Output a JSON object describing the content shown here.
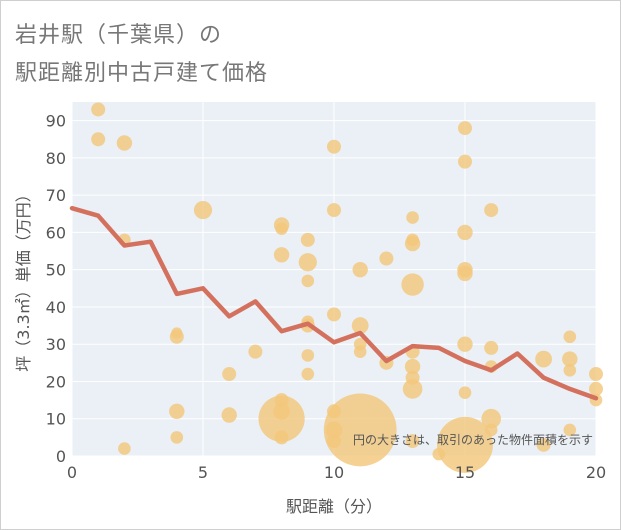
{
  "header": {
    "title_line1": "岩井駅（千葉県）の",
    "title_line2": "駅距離別中古戸建て価格"
  },
  "chart_data": {
    "type": "scatter",
    "title": "岩井駅（千葉県）の駅距離別中古戸建て価格",
    "xlabel": "駅距離（分）",
    "ylabel": "坪（3.3㎡）単価（万円）",
    "xlim": [
      0,
      20
    ],
    "ylim": [
      0,
      95
    ],
    "xticks": [
      0,
      5,
      10,
      15,
      20
    ],
    "yticks": [
      0,
      10,
      20,
      30,
      40,
      50,
      60,
      70,
      80,
      90
    ],
    "grid": true,
    "note": "円の大きさは、取引のあった物件面積を示す",
    "colors": {
      "bubble": "#f3c77d",
      "line": "#d4715e",
      "plot_bg": "#eaf0f5",
      "grid": "#ffffff",
      "axis_text": "#555555"
    },
    "series": [
      {
        "type": "scatter",
        "points": [
          {
            "x": 1,
            "y": 93,
            "s": 1.0
          },
          {
            "x": 1,
            "y": 85,
            "s": 1.0
          },
          {
            "x": 2,
            "y": 84,
            "s": 1.1
          },
          {
            "x": 2,
            "y": 58,
            "s": 0.9
          },
          {
            "x": 2,
            "y": 2,
            "s": 0.9
          },
          {
            "x": 4,
            "y": 33,
            "s": 0.8
          },
          {
            "x": 4,
            "y": 32,
            "s": 1.0
          },
          {
            "x": 4,
            "y": 12,
            "s": 1.1
          },
          {
            "x": 4,
            "y": 5,
            "s": 0.9
          },
          {
            "x": 5,
            "y": 66,
            "s": 1.3
          },
          {
            "x": 6,
            "y": 22,
            "s": 1.0
          },
          {
            "x": 6,
            "y": 11,
            "s": 1.1
          },
          {
            "x": 7,
            "y": 28,
            "s": 1.0
          },
          {
            "x": 8,
            "y": 62,
            "s": 1.1
          },
          {
            "x": 8,
            "y": 61,
            "s": 0.9
          },
          {
            "x": 8,
            "y": 54,
            "s": 1.1
          },
          {
            "x": 8,
            "y": 15,
            "s": 1.0
          },
          {
            "x": 8,
            "y": 12,
            "s": 1.2
          },
          {
            "x": 8,
            "y": 10,
            "s": 3.3
          },
          {
            "x": 8,
            "y": 5,
            "s": 1.0
          },
          {
            "x": 9,
            "y": 58,
            "s": 1.0
          },
          {
            "x": 9,
            "y": 52,
            "s": 1.3
          },
          {
            "x": 9,
            "y": 47,
            "s": 0.9
          },
          {
            "x": 9,
            "y": 36,
            "s": 0.9
          },
          {
            "x": 9,
            "y": 35,
            "s": 1.0
          },
          {
            "x": 9,
            "y": 27,
            "s": 0.9
          },
          {
            "x": 9,
            "y": 22,
            "s": 0.9
          },
          {
            "x": 10,
            "y": 83,
            "s": 1.0
          },
          {
            "x": 10,
            "y": 66,
            "s": 1.0
          },
          {
            "x": 10,
            "y": 38,
            "s": 1.0
          },
          {
            "x": 10,
            "y": 12,
            "s": 1.0
          },
          {
            "x": 10,
            "y": 7,
            "s": 1.2
          },
          {
            "x": 10,
            "y": 4,
            "s": 1.0
          },
          {
            "x": 11,
            "y": 50,
            "s": 1.1
          },
          {
            "x": 11,
            "y": 35,
            "s": 1.2
          },
          {
            "x": 11,
            "y": 30,
            "s": 0.9
          },
          {
            "x": 11,
            "y": 28,
            "s": 0.9
          },
          {
            "x": 11,
            "y": 7,
            "s": 5.2
          },
          {
            "x": 12,
            "y": 53,
            "s": 1.0
          },
          {
            "x": 12,
            "y": 25,
            "s": 1.0
          },
          {
            "x": 13,
            "y": 64,
            "s": 0.9
          },
          {
            "x": 13,
            "y": 58,
            "s": 0.9
          },
          {
            "x": 13,
            "y": 57,
            "s": 1.1
          },
          {
            "x": 13,
            "y": 46,
            "s": 1.6
          },
          {
            "x": 13,
            "y": 28,
            "s": 1.0
          },
          {
            "x": 13,
            "y": 24,
            "s": 1.1
          },
          {
            "x": 13,
            "y": 21,
            "s": 1.0
          },
          {
            "x": 13,
            "y": 18,
            "s": 1.4
          },
          {
            "x": 13,
            "y": 4,
            "s": 1.0
          },
          {
            "x": 14,
            "y": 0.5,
            "s": 0.9
          },
          {
            "x": 15,
            "y": 88,
            "s": 1.0
          },
          {
            "x": 15,
            "y": 79,
            "s": 1.0
          },
          {
            "x": 15,
            "y": 60,
            "s": 1.1
          },
          {
            "x": 15,
            "y": 50,
            "s": 1.1
          },
          {
            "x": 15,
            "y": 49,
            "s": 1.1
          },
          {
            "x": 15,
            "y": 30,
            "s": 1.1
          },
          {
            "x": 15,
            "y": 17,
            "s": 0.9
          },
          {
            "x": 15,
            "y": 3,
            "s": 4.0
          },
          {
            "x": 16,
            "y": 66,
            "s": 1.0
          },
          {
            "x": 16,
            "y": 29,
            "s": 1.0
          },
          {
            "x": 16,
            "y": 24,
            "s": 0.9
          },
          {
            "x": 16,
            "y": 10,
            "s": 1.4
          },
          {
            "x": 16,
            "y": 7,
            "s": 0.9
          },
          {
            "x": 18,
            "y": 26,
            "s": 1.2
          },
          {
            "x": 18,
            "y": 3,
            "s": 1.0
          },
          {
            "x": 19,
            "y": 32,
            "s": 0.9
          },
          {
            "x": 19,
            "y": 26,
            "s": 1.1
          },
          {
            "x": 19,
            "y": 23,
            "s": 0.9
          },
          {
            "x": 19,
            "y": 7,
            "s": 0.9
          },
          {
            "x": 20,
            "y": 22,
            "s": 1.0
          },
          {
            "x": 20,
            "y": 18,
            "s": 1.0
          },
          {
            "x": 20,
            "y": 15,
            "s": 0.9
          }
        ]
      },
      {
        "type": "line",
        "x": [
          0,
          1,
          2,
          3,
          4,
          5,
          6,
          7,
          8,
          9,
          10,
          11,
          12,
          13,
          14,
          15,
          16,
          17,
          18,
          19,
          20
        ],
        "y": [
          66.5,
          64.5,
          56.5,
          57.5,
          43.5,
          45,
          37.5,
          41.5,
          33.5,
          35.5,
          30.5,
          33,
          25.5,
          29.5,
          29,
          25.5,
          23,
          27.5,
          21,
          18,
          15.5
        ]
      }
    ]
  }
}
